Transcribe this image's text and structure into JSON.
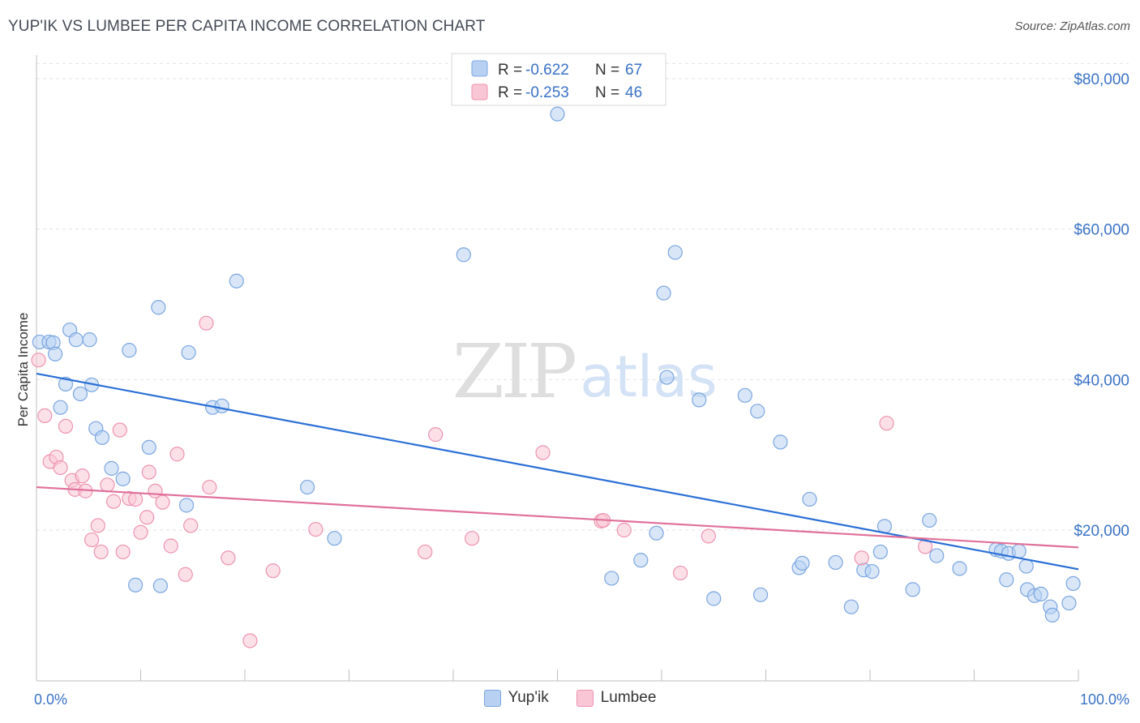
{
  "header": {
    "title": "YUP'IK VS LUMBEE PER CAPITA INCOME CORRELATION CHART",
    "source": "Source: ZipAtlas.com"
  },
  "watermark": {
    "zip": "ZIP",
    "atlas": "atlas"
  },
  "legend_top": [
    {
      "r_label": "R = ",
      "r_value": "-0.622",
      "n_label": "N = ",
      "n_value": "67",
      "fill": "#b8d1f3",
      "stroke": "#7ba6e0"
    },
    {
      "r_label": "R = ",
      "r_value": "-0.253",
      "n_label": "N = ",
      "n_value": "46",
      "fill": "#f9c6d6",
      "stroke": "#ee93b0"
    }
  ],
  "chart_data": {
    "type": "scatter",
    "title": "YUP'IK VS LUMBEE PER CAPITA INCOME CORRELATION CHART",
    "xlabel": "",
    "ylabel": "Per Capita Income",
    "xlim": [
      0,
      100
    ],
    "ylim": [
      3000,
      83000
    ],
    "x_tick_labels": [
      "0.0%",
      "100.0%"
    ],
    "y_ticks": [
      20000,
      40000,
      60000,
      80000
    ],
    "y_tick_labels": [
      "$20,000",
      "$40,000",
      "$60,000",
      "$80,000"
    ],
    "grid": true,
    "legend_position": "bottom",
    "series": [
      {
        "name": "Yup'ik",
        "color": "#7ba6e0",
        "fill": "#b8d1f3",
        "line_color": "#2a6fd6",
        "trend": [
          [
            0,
            40800
          ],
          [
            100,
            14800
          ]
        ],
        "points": [
          [
            0.3,
            45000
          ],
          [
            1.2,
            45000
          ],
          [
            1.6,
            44900
          ],
          [
            1.8,
            43400
          ],
          [
            2.3,
            36300
          ],
          [
            2.8,
            39400
          ],
          [
            3.2,
            46600
          ],
          [
            3.8,
            45300
          ],
          [
            4.2,
            38100
          ],
          [
            5.1,
            45300
          ],
          [
            5.3,
            39300
          ],
          [
            5.7,
            33500
          ],
          [
            6.3,
            32300
          ],
          [
            7.2,
            28200
          ],
          [
            8.3,
            26800
          ],
          [
            8.9,
            43900
          ],
          [
            9.5,
            12700
          ],
          [
            10.8,
            31000
          ],
          [
            11.7,
            49600
          ],
          [
            11.9,
            12600
          ],
          [
            14.6,
            43600
          ],
          [
            14.4,
            23300
          ],
          [
            16.9,
            36300
          ],
          [
            17.8,
            36500
          ],
          [
            19.2,
            53100
          ],
          [
            26.0,
            25700
          ],
          [
            28.6,
            18900
          ],
          [
            41.0,
            56600
          ],
          [
            50.0,
            75300
          ],
          [
            55.2,
            13600
          ],
          [
            58.0,
            16000
          ],
          [
            59.5,
            19600
          ],
          [
            60.2,
            51500
          ],
          [
            60.5,
            40300
          ],
          [
            61.3,
            56900
          ],
          [
            63.6,
            37300
          ],
          [
            65.0,
            10900
          ],
          [
            68.0,
            37900
          ],
          [
            69.2,
            35800
          ],
          [
            69.5,
            11400
          ],
          [
            71.4,
            31700
          ],
          [
            73.2,
            15000
          ],
          [
            73.5,
            15600
          ],
          [
            74.2,
            24100
          ],
          [
            76.7,
            15700
          ],
          [
            78.2,
            9800
          ],
          [
            79.4,
            14700
          ],
          [
            80.2,
            14500
          ],
          [
            81.0,
            17100
          ],
          [
            81.4,
            20500
          ],
          [
            84.1,
            12100
          ],
          [
            85.7,
            21300
          ],
          [
            86.4,
            16600
          ],
          [
            88.6,
            14900
          ],
          [
            92.1,
            17400
          ],
          [
            92.6,
            17200
          ],
          [
            93.1,
            13400
          ],
          [
            93.3,
            16900
          ],
          [
            94.3,
            17200
          ],
          [
            95.0,
            15200
          ],
          [
            95.1,
            12100
          ],
          [
            95.8,
            11300
          ],
          [
            96.4,
            11500
          ],
          [
            97.3,
            9800
          ],
          [
            97.5,
            8700
          ],
          [
            99.1,
            10300
          ],
          [
            99.5,
            12900
          ]
        ]
      },
      {
        "name": "Lumbee",
        "color": "#ee93b0",
        "fill": "#f9c6d6",
        "line_color": "#e0709a",
        "trend": [
          [
            0,
            25700
          ],
          [
            100,
            17700
          ]
        ],
        "points": [
          [
            0.2,
            42600
          ],
          [
            0.8,
            35200
          ],
          [
            1.3,
            29100
          ],
          [
            1.9,
            29700
          ],
          [
            2.3,
            28300
          ],
          [
            2.8,
            33800
          ],
          [
            3.4,
            26600
          ],
          [
            3.7,
            25400
          ],
          [
            4.4,
            27200
          ],
          [
            4.7,
            25200
          ],
          [
            5.3,
            18700
          ],
          [
            5.9,
            20600
          ],
          [
            6.2,
            17100
          ],
          [
            6.8,
            26000
          ],
          [
            7.4,
            23800
          ],
          [
            8.0,
            33300
          ],
          [
            8.3,
            17100
          ],
          [
            8.9,
            24200
          ],
          [
            9.5,
            24100
          ],
          [
            10.0,
            19700
          ],
          [
            10.6,
            21700
          ],
          [
            10.8,
            27700
          ],
          [
            11.4,
            25200
          ],
          [
            12.1,
            23700
          ],
          [
            12.9,
            17900
          ],
          [
            13.5,
            30100
          ],
          [
            14.3,
            14100
          ],
          [
            14.8,
            20600
          ],
          [
            16.3,
            47500
          ],
          [
            16.6,
            25700
          ],
          [
            18.4,
            16300
          ],
          [
            20.5,
            5300
          ],
          [
            22.7,
            14600
          ],
          [
            26.8,
            20100
          ],
          [
            37.3,
            17100
          ],
          [
            38.3,
            32700
          ],
          [
            41.8,
            18900
          ],
          [
            48.6,
            30300
          ],
          [
            54.2,
            21200
          ],
          [
            54.4,
            21300
          ],
          [
            56.4,
            20000
          ],
          [
            61.8,
            14300
          ],
          [
            64.5,
            19200
          ],
          [
            79.2,
            16300
          ],
          [
            81.6,
            34200
          ],
          [
            85.3,
            17800
          ]
        ]
      }
    ]
  }
}
